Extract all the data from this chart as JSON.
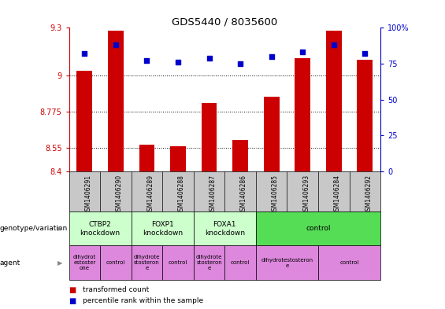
{
  "title": "GDS5440 / 8035600",
  "samples": [
    "GSM1406291",
    "GSM1406290",
    "GSM1406289",
    "GSM1406288",
    "GSM1406287",
    "GSM1406286",
    "GSM1406285",
    "GSM1406293",
    "GSM1406284",
    "GSM1406292"
  ],
  "transformed_count": [
    9.03,
    9.28,
    8.57,
    8.56,
    8.83,
    8.6,
    8.87,
    9.11,
    9.28,
    9.1
  ],
  "percentile_rank": [
    82,
    88,
    77,
    76,
    79,
    75,
    80,
    83,
    88,
    82
  ],
  "ylim_left": [
    8.4,
    9.3
  ],
  "ylim_right": [
    0,
    100
  ],
  "yticks_left": [
    8.4,
    8.55,
    8.775,
    9.0,
    9.3
  ],
  "ytick_labels_left": [
    "8.4",
    "8.55",
    "8.775",
    "9",
    "9.3"
  ],
  "yticks_right": [
    0,
    25,
    50,
    75,
    100
  ],
  "ytick_labels_right": [
    "0",
    "25",
    "50",
    "75",
    "100%"
  ],
  "bar_color": "#cc0000",
  "dot_color": "#0000cc",
  "grid_ticks": [
    9.0,
    8.775,
    8.55
  ],
  "genotype_groups": [
    {
      "label": "CTBP2\nknockdown",
      "start": 0,
      "end": 2,
      "color": "#ccffcc"
    },
    {
      "label": "FOXP1\nknockdown",
      "start": 2,
      "end": 4,
      "color": "#ccffcc"
    },
    {
      "label": "FOXA1\nknockdown",
      "start": 4,
      "end": 6,
      "color": "#ccffcc"
    },
    {
      "label": "control",
      "start": 6,
      "end": 10,
      "color": "#55dd55"
    }
  ],
  "agent_groups": [
    {
      "label": "dihydrot\nestoster\none",
      "start": 0,
      "end": 1,
      "color": "#dd88dd"
    },
    {
      "label": "control",
      "start": 1,
      "end": 2,
      "color": "#dd88dd"
    },
    {
      "label": "dihydrote\nstosteron\ne",
      "start": 2,
      "end": 3,
      "color": "#dd88dd"
    },
    {
      "label": "control",
      "start": 3,
      "end": 4,
      "color": "#dd88dd"
    },
    {
      "label": "dihydrote\nstosteron\ne",
      "start": 4,
      "end": 5,
      "color": "#dd88dd"
    },
    {
      "label": "control",
      "start": 5,
      "end": 6,
      "color": "#dd88dd"
    },
    {
      "label": "dihydrotestosteron\ne",
      "start": 6,
      "end": 8,
      "color": "#dd88dd"
    },
    {
      "label": "control",
      "start": 8,
      "end": 10,
      "color": "#dd88dd"
    }
  ],
  "left_axis_color": "#cc0000",
  "right_axis_color": "#0000cc",
  "sample_bg_color": "#c8c8c8",
  "legend_bar_color": "#cc0000",
  "legend_dot_color": "#0000cc"
}
